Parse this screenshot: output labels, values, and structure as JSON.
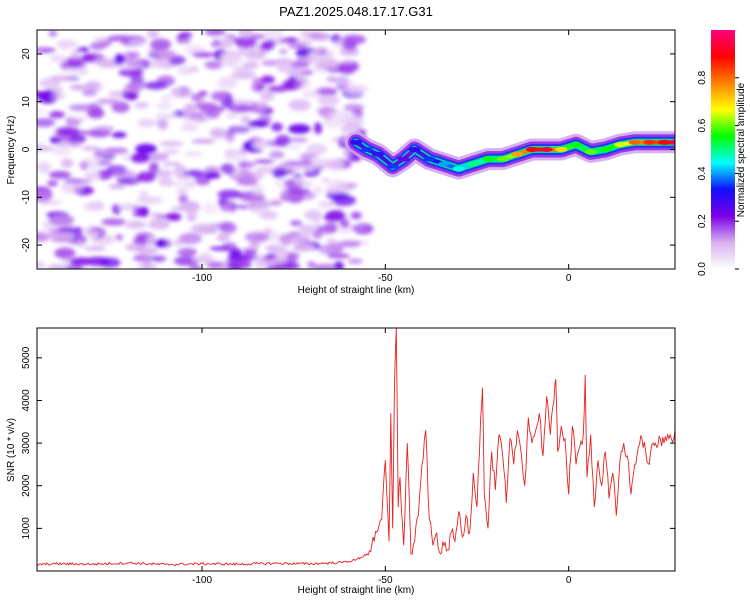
{
  "title": "PAZ1.2025.048.17.17.G31",
  "chart_data": [
    {
      "type": "heatmap",
      "xlabel": "Height of straight line (km)",
      "ylabel": "Frequency (Hz)",
      "xlim": [
        -145,
        29
      ],
      "ylim": [
        -25,
        25
      ],
      "xticks": [
        -100,
        -50,
        0
      ],
      "yticks": [
        -20,
        -10,
        0,
        10,
        20
      ],
      "colorbar": {
        "label": "Normalized spectral amplitude",
        "range": [
          0,
          1
        ],
        "ticks": [
          "0.0",
          "0.2",
          "0.4",
          "0.6",
          "0.8"
        ],
        "colors": [
          "#ffffff",
          "#d8b0f0",
          "#7a00e6",
          "#1010ff",
          "#00ffff",
          "#00ff00",
          "#ffff00",
          "#ff8000",
          "#ff0000",
          "#ff0080"
        ]
      },
      "ridge": {
        "x": [
          -58,
          -55,
          -52,
          -48,
          -45,
          -42,
          -38,
          -34,
          -30,
          -26,
          -22,
          -18,
          -14,
          -10,
          -6,
          -2,
          2,
          6,
          10,
          14,
          18,
          22,
          26,
          29
        ],
        "y": [
          1.5,
          0,
          -1,
          -3.5,
          -2,
          0,
          -2,
          -3,
          -4,
          -3,
          -2,
          -2,
          -1,
          0,
          0,
          0,
          1,
          -0.5,
          0,
          1,
          1.5,
          1.5,
          1.5,
          1.5
        ],
        "amplitude": [
          0.25,
          0.3,
          0.25,
          0.3,
          0.2,
          0.25,
          0.3,
          0.35,
          0.4,
          0.45,
          0.5,
          0.55,
          0.7,
          0.85,
          0.9,
          0.65,
          0.5,
          0.55,
          0.5,
          0.6,
          0.75,
          0.8,
          0.85,
          0.9
        ]
      },
      "noise_region": {
        "x": [
          -145,
          -58
        ],
        "amplitude": [
          0.05,
          0.25
        ]
      }
    },
    {
      "type": "line",
      "xlabel": "Height of straight line (km)",
      "ylabel": "SNR (10 * v/v)",
      "xlim": [
        -145,
        29
      ],
      "ylim": [
        0,
        5700
      ],
      "xticks": [
        -100,
        -50,
        0
      ],
      "yticks": [
        1000,
        2000,
        3000,
        4000,
        5000
      ],
      "line_color": "#e82020",
      "series": [
        {
          "x": [
            -145,
            -140,
            -130,
            -120,
            -110,
            -100,
            -90,
            -80,
            -70,
            -62,
            -58,
            -55,
            -53,
            -51,
            -50,
            -49,
            -48.5,
            -48,
            -47.5,
            -47,
            -46.5,
            -46,
            -45,
            -44,
            -43,
            -42,
            -41,
            -40,
            -39,
            -38,
            -37,
            -36,
            -35,
            -34,
            -33,
            -32,
            -31,
            -30,
            -29,
            -28,
            -27,
            -26,
            -25,
            -24,
            -23.5,
            -23,
            -22,
            -21,
            -20,
            -19,
            -18,
            -17,
            -16,
            -15,
            -14,
            -13,
            -12,
            -11,
            -10,
            -9,
            -8,
            -7,
            -6,
            -5,
            -4,
            -3.5,
            -3,
            -2,
            -1,
            0,
            1,
            2,
            3,
            4,
            4.5,
            5,
            6,
            7,
            8,
            9,
            10,
            11,
            12,
            13,
            14,
            15,
            16,
            17,
            18,
            19,
            20,
            21,
            22,
            23,
            24,
            25,
            26,
            27,
            28,
            29
          ],
          "y": [
            150,
            170,
            160,
            190,
            150,
            170,
            160,
            180,
            170,
            200,
            260,
            400,
            700,
            1200,
            2600,
            700,
            3700,
            1000,
            4400,
            5700,
            1500,
            2200,
            600,
            3000,
            400,
            700,
            1300,
            2500,
            3300,
            1200,
            600,
            900,
            400,
            600,
            500,
            900,
            700,
            1400,
            800,
            1300,
            900,
            2300,
            1500,
            3600,
            4300,
            1800,
            1000,
            2800,
            1900,
            3200,
            2700,
            1600,
            3100,
            2500,
            3300,
            2800,
            2000,
            3600,
            3000,
            3300,
            3700,
            2700,
            4100,
            3200,
            4000,
            4500,
            2800,
            3400,
            3100,
            1800,
            3400,
            2500,
            2900,
            3200,
            4600,
            2200,
            3200,
            1500,
            2600,
            2000,
            2800,
            1700,
            2300,
            1300,
            2600,
            3000,
            2700,
            1800,
            2500,
            2900,
            3100,
            2800,
            2500,
            3000,
            2900,
            3100,
            3000,
            3200,
            3100,
            3300
          ]
        }
      ]
    }
  ]
}
